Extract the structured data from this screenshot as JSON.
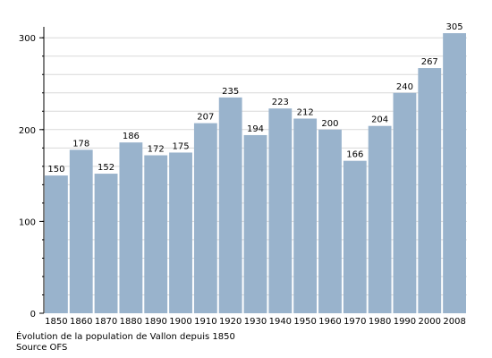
{
  "chart_data": {
    "type": "bar",
    "categories": [
      "1850",
      "1860",
      "1870",
      "1880",
      "1890",
      "1900",
      "1910",
      "1920",
      "1930",
      "1940",
      "1950",
      "1960",
      "1970",
      "1980",
      "1990",
      "2000",
      "2008"
    ],
    "values": [
      150,
      178,
      152,
      186,
      172,
      175,
      207,
      235,
      194,
      223,
      212,
      200,
      166,
      204,
      240,
      267,
      305
    ],
    "ylim": [
      0,
      310
    ],
    "yticks": [
      0,
      100,
      200,
      300
    ],
    "grid": true,
    "bar_color": "#99b3cc",
    "grid_color": "#d9d9d9"
  },
  "caption": {
    "title": "Évolution de la population de Vallon depuis 1850",
    "source": "Source OFS"
  }
}
